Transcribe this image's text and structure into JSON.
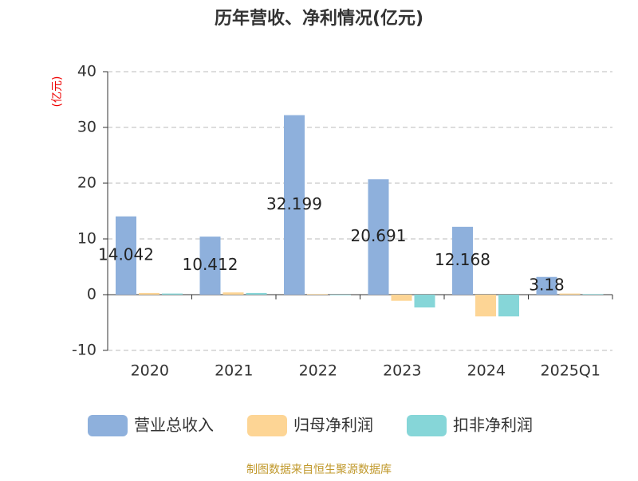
{
  "chart_data": {
    "type": "bar",
    "title": "历年营收、净利情况(亿元)",
    "y_label": "(亿元)",
    "source": "制图数据来自恒生聚源数据库",
    "categories": [
      "2020",
      "2021",
      "2022",
      "2023",
      "2024",
      "2025Q1"
    ],
    "series": [
      {
        "name": "营业总收入",
        "color": "#8eb0dc",
        "values": [
          14.042,
          10.412,
          32.199,
          20.691,
          12.168,
          3.18
        ],
        "show_labels": true
      },
      {
        "name": "归母净利润",
        "color": "#fdd595",
        "values": [
          0.3,
          0.4,
          0.1,
          -1.1,
          -3.9,
          0.2
        ]
      },
      {
        "name": "扣非净利润",
        "color": "#86d6d8",
        "values": [
          0.2,
          0.3,
          -0.1,
          -2.3,
          -3.9,
          0.1
        ]
      }
    ],
    "ylim": [
      -10,
      40
    ],
    "yticks": [
      -10,
      0,
      10,
      20,
      30,
      40
    ],
    "grid": true
  }
}
